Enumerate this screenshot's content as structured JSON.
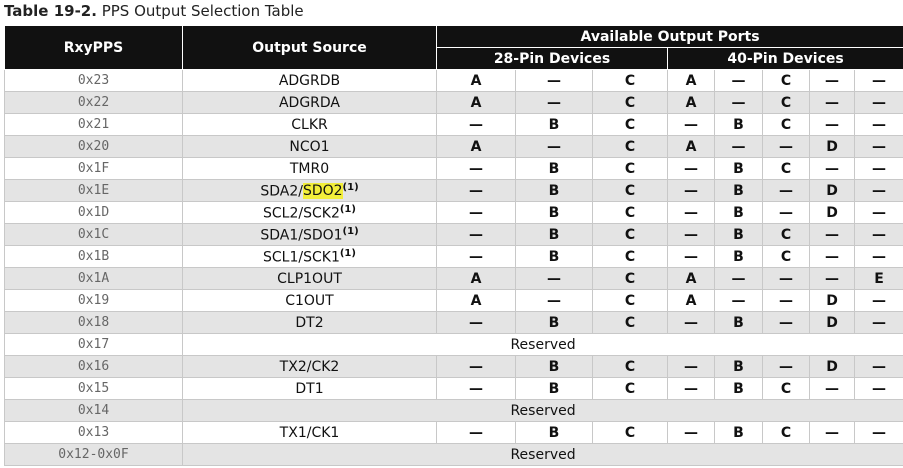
{
  "caption": {
    "label": "Table 19-2.",
    "title": "PPS Output Selection Table"
  },
  "table": {
    "headers": {
      "reg": "RxyPPS",
      "source": "Output Source",
      "ports": "Available Output Ports",
      "pin28": "28-Pin Devices",
      "pin40": "40-Pin Devices"
    },
    "rows": [
      {
        "code": "0x23",
        "source": "ADGRDB",
        "ports": [
          "A",
          "—",
          "C",
          "A",
          "—",
          "C",
          "—",
          "—"
        ]
      },
      {
        "code": "0x22",
        "source": "ADGRDA",
        "ports": [
          "A",
          "—",
          "C",
          "A",
          "—",
          "C",
          "—",
          "—"
        ]
      },
      {
        "code": "0x21",
        "source": "CLKR",
        "ports": [
          "—",
          "B",
          "C",
          "—",
          "B",
          "C",
          "—",
          "—"
        ]
      },
      {
        "code": "0x20",
        "source": "NCO1",
        "ports": [
          "A",
          "—",
          "C",
          "A",
          "—",
          "—",
          "D",
          "—"
        ]
      },
      {
        "code": "0x1F",
        "source": "TMR0",
        "ports": [
          "—",
          "B",
          "C",
          "—",
          "B",
          "C",
          "—",
          "—"
        ]
      },
      {
        "code": "0x1E",
        "source": "SDA2/",
        "highlight": "SDO2",
        "note": "(1)",
        "ports": [
          "—",
          "B",
          "C",
          "—",
          "B",
          "—",
          "D",
          "—"
        ]
      },
      {
        "code": "0x1D",
        "source": "SCL2/SCK2",
        "note": "(1)",
        "ports": [
          "—",
          "B",
          "C",
          "—",
          "B",
          "—",
          "D",
          "—"
        ]
      },
      {
        "code": "0x1C",
        "source": "SDA1/SDO1",
        "note": "(1)",
        "ports": [
          "—",
          "B",
          "C",
          "—",
          "B",
          "C",
          "—",
          "—"
        ]
      },
      {
        "code": "0x1B",
        "source": "SCL1/SCK1",
        "note": "(1)",
        "ports": [
          "—",
          "B",
          "C",
          "—",
          "B",
          "C",
          "—",
          "—"
        ]
      },
      {
        "code": "0x1A",
        "source": "CLP1OUT",
        "ports": [
          "A",
          "—",
          "C",
          "A",
          "—",
          "—",
          "—",
          "E"
        ]
      },
      {
        "code": "0x19",
        "source": "C1OUT",
        "ports": [
          "A",
          "—",
          "C",
          "A",
          "—",
          "—",
          "D",
          "—"
        ]
      },
      {
        "code": "0x18",
        "source": "DT2",
        "ports": [
          "—",
          "B",
          "C",
          "—",
          "B",
          "—",
          "D",
          "—"
        ]
      },
      {
        "code": "0x17",
        "reserved": "Reserved"
      },
      {
        "code": "0x16",
        "source": "TX2/CK2",
        "ports": [
          "—",
          "B",
          "C",
          "—",
          "B",
          "—",
          "D",
          "—"
        ]
      },
      {
        "code": "0x15",
        "source": "DT1",
        "ports": [
          "—",
          "B",
          "C",
          "—",
          "B",
          "C",
          "—",
          "—"
        ]
      },
      {
        "code": "0x14",
        "reserved": "Reserved"
      },
      {
        "code": "0x13",
        "source": "TX1/CK1",
        "ports": [
          "—",
          "B",
          "C",
          "—",
          "B",
          "C",
          "—",
          "—"
        ]
      },
      {
        "code": "0x12-0x0F",
        "reserved": "Reserved"
      }
    ]
  }
}
